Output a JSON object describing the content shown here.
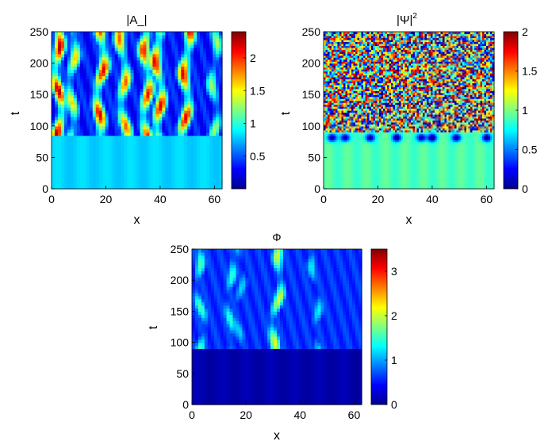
{
  "chart_data": [
    {
      "type": "heatmap",
      "title": "|A_|",
      "xlabel": "x",
      "ylabel": "t",
      "xlim": [
        0,
        62.8
      ],
      "ylim": [
        0,
        250
      ],
      "xticks": [
        "0",
        "20",
        "40",
        "60"
      ],
      "yticks": [
        "0",
        "50",
        "100",
        "150",
        "200",
        "250"
      ],
      "colorbar": {
        "range": [
          0,
          2.4
        ],
        "ticks": [
          "0.5",
          "1",
          "1.5",
          "2"
        ],
        "colormap": "jet"
      },
      "field": {
        "base_value": 0.8,
        "onset_t": 85,
        "background_after_onset": 0.35,
        "filaments": [
          {
            "x_at_onset": 3,
            "x_at_top": 2,
            "peak": 2.3
          },
          {
            "x_at_onset": 7,
            "x_at_top": 8,
            "peak": 1.6
          },
          {
            "x_at_onset": 17,
            "x_at_top": 19,
            "peak": 2.2
          },
          {
            "x_at_onset": 27,
            "x_at_top": 26,
            "peak": 1.9
          },
          {
            "x_at_onset": 35,
            "x_at_top": 35,
            "peak": 2.1
          },
          {
            "x_at_onset": 40,
            "x_at_top": 39,
            "peak": 2.2
          },
          {
            "x_at_onset": 49,
            "x_at_top": 50,
            "peak": 2.2
          },
          {
            "x_at_onset": 60,
            "x_at_top": 60,
            "peak": 1.3
          }
        ]
      }
    },
    {
      "type": "heatmap",
      "title": "|Ψ|",
      "title_superscript": "2",
      "xlabel": "x",
      "ylabel": "t",
      "xlim": [
        0,
        62.8
      ],
      "ylim": [
        0,
        250
      ],
      "xticks": [
        "0",
        "20",
        "40",
        "60"
      ],
      "yticks": [
        "0",
        "50",
        "100",
        "150",
        "200",
        "250"
      ],
      "colorbar": {
        "range": [
          0,
          2
        ],
        "ticks": [
          "0",
          "0.5",
          "1",
          "1.5",
          "2"
        ],
        "colormap": "jet"
      },
      "field": {
        "base_value": 0.9,
        "onset_t": 90,
        "noisy_region_value_range": [
          0,
          2
        ],
        "dark_spots_x": [
          3,
          8,
          17,
          27,
          36,
          40,
          49,
          60
        ]
      }
    },
    {
      "type": "heatmap",
      "title": "Φ",
      "xlabel": "x",
      "ylabel": "t",
      "xlim": [
        0,
        62.8
      ],
      "ylim": [
        0,
        250
      ],
      "xticks": [
        "0",
        "20",
        "40",
        "60"
      ],
      "yticks": [
        "0",
        "50",
        "100",
        "150",
        "200",
        "250"
      ],
      "colorbar": {
        "range": [
          0,
          3.5
        ],
        "ticks": [
          "0",
          "1",
          "2",
          "3"
        ],
        "colormap": "jet"
      },
      "field": {
        "base_value": 0.15,
        "onset_t": 90,
        "background_after_onset": 0.6,
        "filaments": [
          {
            "x_at_onset": 4,
            "x_at_top": 2,
            "peak": 1.6
          },
          {
            "x_at_onset": 14,
            "x_at_top": 14,
            "peak": 1.5
          },
          {
            "x_at_onset": 17,
            "x_at_top": 18,
            "peak": 1.2
          },
          {
            "x_at_onset": 30,
            "x_at_top": 33,
            "peak": 2.1
          },
          {
            "x_at_onset": 47,
            "x_at_top": 45,
            "peak": 1.3
          }
        ]
      }
    }
  ]
}
